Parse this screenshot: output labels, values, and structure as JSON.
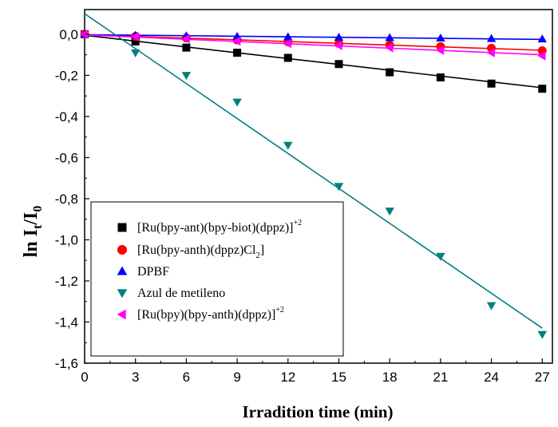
{
  "chart_data": {
    "type": "scatter",
    "xlabel": "Irradition time (min)",
    "ylabel": {
      "main": "ln I",
      "sub1": "t",
      "mid": "/I",
      "sub2": "0"
    },
    "xlim": [
      0,
      27.6
    ],
    "ylim": [
      -1.6,
      0.12
    ],
    "x_ticks": [
      0,
      3,
      6,
      9,
      12,
      15,
      18,
      21,
      24,
      27
    ],
    "x_tick_labels": [
      "0",
      "3",
      "6",
      "9",
      "12",
      "15",
      "18",
      "21",
      "24",
      "27"
    ],
    "y_ticks": [
      0.0,
      -0.2,
      -0.4,
      -0.6,
      -0.8,
      -1.0,
      -1.2,
      -1.4,
      -1.6
    ],
    "y_tick_labels": [
      "0,0",
      "-0,2",
      "-0,4",
      "-0,6",
      "-0,8",
      "-1,0",
      "-1,2",
      "-1,4",
      "-1,6"
    ],
    "grid": false,
    "legend_position": "lower-left",
    "series": [
      {
        "name": "[Ru(bpy-ant)(bpy-biot)(dppz)]",
        "superscript": "+2",
        "marker": "square",
        "color": "#000000",
        "x": [
          0,
          3,
          6,
          9,
          12,
          15,
          18,
          21,
          24,
          27
        ],
        "y": [
          0.0,
          -0.035,
          -0.065,
          -0.09,
          -0.115,
          -0.145,
          -0.185,
          -0.21,
          -0.24,
          -0.265
        ],
        "fit": [
          [
            0,
            -0.005
          ],
          [
            27,
            -0.26
          ]
        ]
      },
      {
        "name": "[Ru(bpy-anth)(dppz)Cl",
        "subscript": "2",
        "suffix": "]",
        "marker": "circle",
        "color": "#ff0000",
        "x": [
          0,
          3,
          6,
          9,
          12,
          15,
          18,
          21,
          24,
          27
        ],
        "y": [
          0.0,
          -0.01,
          -0.018,
          -0.028,
          -0.037,
          -0.045,
          -0.053,
          -0.06,
          -0.068,
          -0.08
        ],
        "fit": [
          [
            0,
            -0.002
          ],
          [
            27,
            -0.078
          ]
        ]
      },
      {
        "name": "DPBF",
        "marker": "triangle-up",
        "color": "#0000ff",
        "x": [
          0,
          3,
          6,
          9,
          12,
          15,
          18,
          21,
          24,
          27
        ],
        "y": [
          0.0,
          -0.005,
          -0.008,
          -0.011,
          -0.013,
          -0.015,
          -0.017,
          -0.019,
          -0.021,
          -0.023
        ],
        "fit": [
          [
            0,
            -0.002
          ],
          [
            27,
            -0.025
          ]
        ]
      },
      {
        "name": "Azul de metileno",
        "marker": "triangle-down",
        "color": "#008080",
        "x": [
          3,
          6,
          9,
          12,
          15,
          18,
          21,
          24,
          27
        ],
        "y": [
          -0.09,
          -0.2,
          -0.33,
          -0.54,
          -0.74,
          -0.86,
          -1.08,
          -1.32,
          -1.46
        ],
        "fit": [
          [
            0,
            0.1
          ],
          [
            27,
            -1.43
          ]
        ]
      },
      {
        "name": "[Ru(bpy)(bpy-anth)(dppz)]",
        "superscript": "+2",
        "marker": "triangle-left",
        "color": "#ff00ff",
        "x": [
          0,
          3,
          6,
          9,
          12,
          15,
          18,
          21,
          24,
          27
        ],
        "y": [
          0.0,
          -0.012,
          -0.022,
          -0.033,
          -0.045,
          -0.055,
          -0.066,
          -0.078,
          -0.09,
          -0.105
        ],
        "fit": [
          [
            0,
            -0.003
          ],
          [
            27,
            -0.1
          ]
        ]
      }
    ]
  }
}
